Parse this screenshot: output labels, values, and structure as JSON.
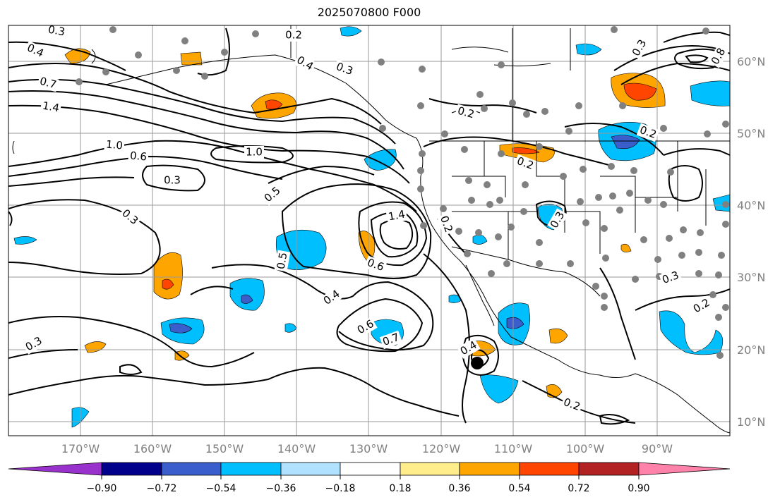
{
  "title": "2025070800 F000",
  "lon_labels": [
    "170°W",
    "160°W",
    "150°W",
    "140°W",
    "130°W",
    "120°W",
    "110°W",
    "100°W",
    "90°W"
  ],
  "lat_labels": [
    "60°N",
    "50°N",
    "40°N",
    "30°N",
    "20°N",
    "10°N"
  ],
  "colorbar": {
    "tick_labels": [
      "−0.90",
      "−0.72",
      "−0.54",
      "−0.36",
      "−0.18",
      "0.18",
      "0.36",
      "0.54",
      "0.72",
      "0.90"
    ],
    "colors": [
      "#9932cc",
      "#00008b",
      "#3a5fcd",
      "#00bfff",
      "#b0e2ff",
      "#ffffff",
      "#ffec8b",
      "#ffa500",
      "#ff4500",
      "#b22222",
      "#ff82ab"
    ]
  },
  "contour_labels": [
    {
      "text": "0.3"
    },
    {
      "text": "0.4"
    },
    {
      "text": "0.2"
    },
    {
      "text": "0.4"
    },
    {
      "text": "0.3"
    },
    {
      "text": "0.7"
    },
    {
      "text": "1.4"
    },
    {
      "text": "1.0"
    },
    {
      "text": "0.6"
    },
    {
      "text": "1.0"
    },
    {
      "text": "0.5"
    },
    {
      "text": "0.3"
    },
    {
      "text": "0.3"
    },
    {
      "text": "0.5"
    },
    {
      "text": "1.4"
    },
    {
      "text": "0.6"
    },
    {
      "text": "0.2"
    },
    {
      "text": "0.4"
    },
    {
      "text": "0.6"
    },
    {
      "text": "0.7"
    },
    {
      "text": "0.4"
    },
    {
      "text": "0.2"
    },
    {
      "text": "0.2"
    },
    {
      "text": "0.2"
    },
    {
      "text": "0.8"
    },
    {
      "text": "0.3"
    },
    {
      "text": "0.3"
    },
    {
      "text": "0.2"
    },
    {
      "text": "0.2"
    },
    {
      "text": "0.3"
    },
    {
      "text": "0.3"
    }
  ],
  "colors": {
    "grid": "#9a9a9a",
    "station": "#808080",
    "contour": "#000000",
    "axis_label": "#808080"
  }
}
